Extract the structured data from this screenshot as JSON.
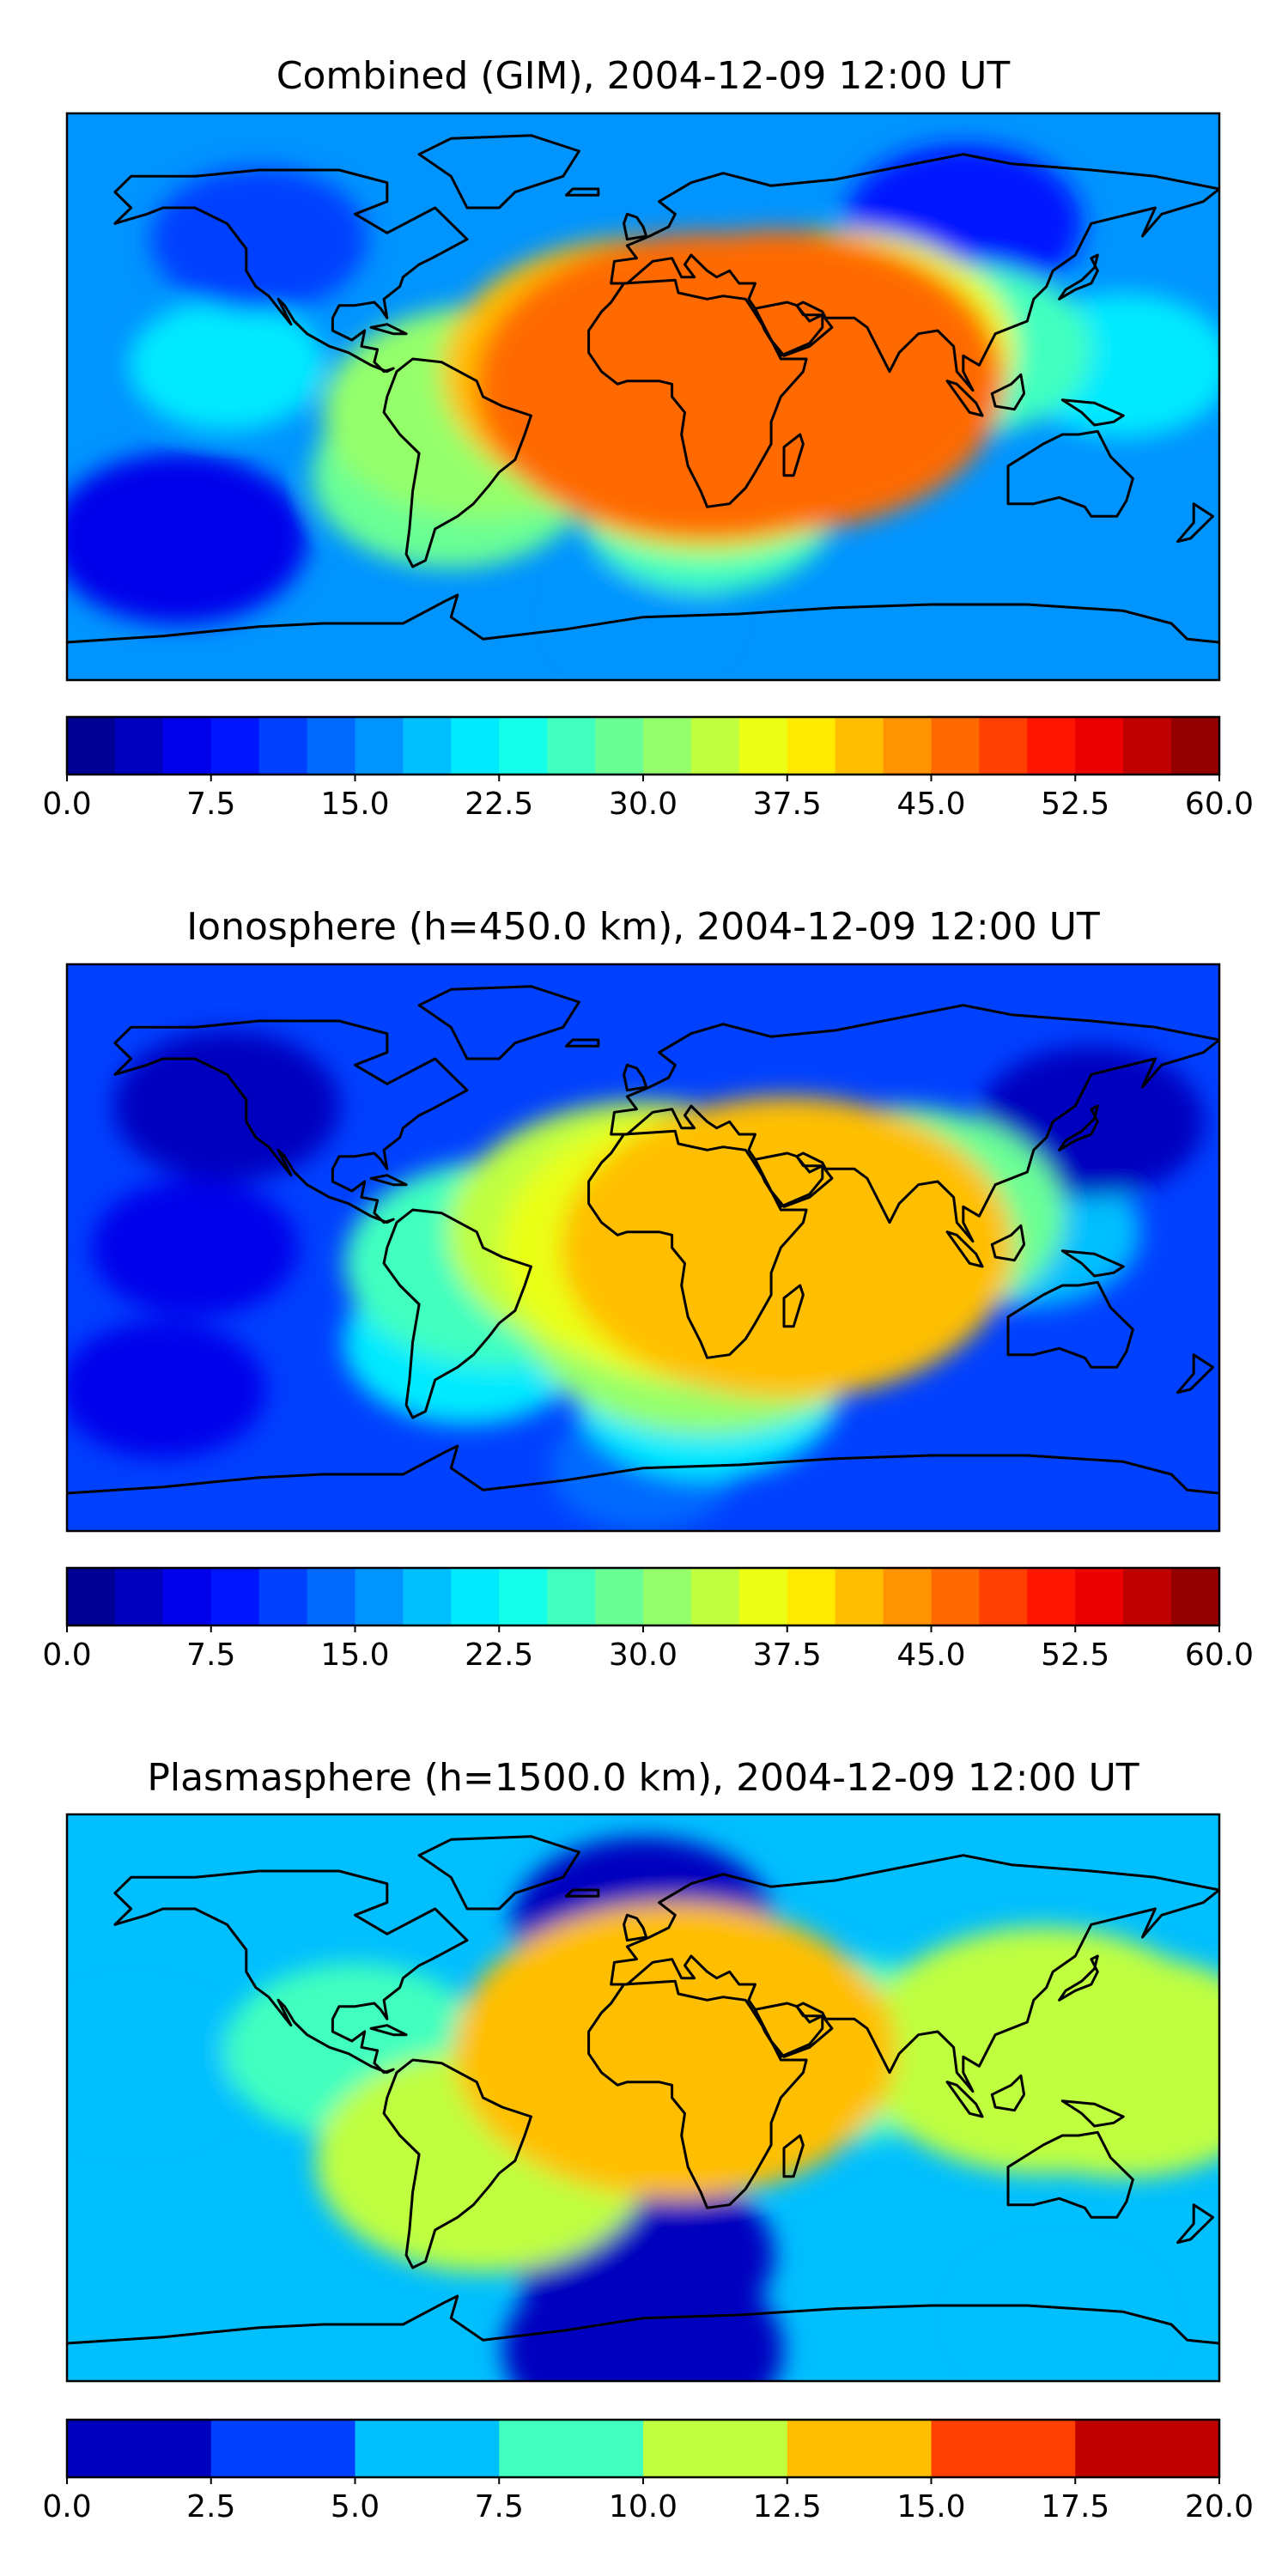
{
  "chart_data": [
    {
      "type": "heatmap",
      "title": "Combined (GIM), 2004-12-09 12:00 UT",
      "colorbar": {
        "min": 0.0,
        "max": 60.0,
        "step": 2.5,
        "ticks": [
          "0.0",
          "7.5",
          "15.0",
          "22.5",
          "30.0",
          "37.5",
          "45.0",
          "52.5",
          "60.0"
        ]
      },
      "features": [
        {
          "lon": 20,
          "lat": 3,
          "value": 46
        },
        {
          "lon": 42,
          "lat": 5,
          "value": 45
        },
        {
          "lon": 0,
          "lat": 8,
          "value": 40
        },
        {
          "lon": 60,
          "lat": 15,
          "value": 36
        },
        {
          "lon": 100,
          "lat": 15,
          "value": 26
        },
        {
          "lon": 150,
          "lat": 10,
          "value": 22
        },
        {
          "lon": -50,
          "lat": -5,
          "value": 32
        },
        {
          "lon": -60,
          "lat": -25,
          "value": 28
        },
        {
          "lon": 20,
          "lat": -15,
          "value": 34
        },
        {
          "lon": 20,
          "lat": -35,
          "value": 26
        },
        {
          "lon": -130,
          "lat": 10,
          "value": 20
        },
        {
          "lon": -120,
          "lat": 50,
          "value": 10
        },
        {
          "lon": -145,
          "lat": -45,
          "value": 6
        },
        {
          "lon": 100,
          "lat": 55,
          "value": 8
        },
        {
          "lon": 0,
          "lat": -70,
          "value": 15
        }
      ],
      "base_value": 16
    },
    {
      "type": "heatmap",
      "title": "Ionosphere  (h=450.0 km), 2004-12-09 12:00 UT",
      "colorbar": {
        "min": 0.0,
        "max": 60.0,
        "step": 2.5,
        "ticks": [
          "0.0",
          "7.5",
          "15.0",
          "22.5",
          "30.0",
          "37.5",
          "45.0",
          "52.5",
          "60.0"
        ]
      },
      "features": [
        {
          "lon": 45,
          "lat": 0,
          "value": 40
        },
        {
          "lon": 20,
          "lat": 0,
          "value": 36
        },
        {
          "lon": 0,
          "lat": 5,
          "value": 34
        },
        {
          "lon": 20,
          "lat": -20,
          "value": 32
        },
        {
          "lon": -45,
          "lat": -5,
          "value": 26
        },
        {
          "lon": -55,
          "lat": -30,
          "value": 20
        },
        {
          "lon": 80,
          "lat": 10,
          "value": 28
        },
        {
          "lon": 120,
          "lat": 5,
          "value": 18
        },
        {
          "lon": 20,
          "lat": -45,
          "value": 22
        },
        {
          "lon": -140,
          "lat": 0,
          "value": 6
        },
        {
          "lon": -130,
          "lat": 45,
          "value": 4
        },
        {
          "lon": 140,
          "lat": 40,
          "value": 4
        },
        {
          "lon": -150,
          "lat": -45,
          "value": 6
        },
        {
          "lon": 0,
          "lat": -70,
          "value": 14
        }
      ],
      "base_value": 11
    },
    {
      "type": "heatmap",
      "title": "Plasmasphere (h=1500.0 km), 2004-12-09 12:00 UT",
      "colorbar": {
        "min": 0.0,
        "max": 20.0,
        "step": 2.5,
        "ticks": [
          "0.0",
          "2.5",
          "5.0",
          "7.5",
          "10.0",
          "12.5",
          "15.0",
          "17.5",
          "20.0"
        ]
      },
      "features": [
        {
          "lon": 10,
          "lat": 15,
          "value": 13
        },
        {
          "lon": 5,
          "lat": 15,
          "value": 11
        },
        {
          "lon": 125,
          "lat": 15,
          "value": 11
        },
        {
          "lon": 150,
          "lat": 10,
          "value": 10
        },
        {
          "lon": -160,
          "lat": 10,
          "value": 6.5
        },
        {
          "lon": -50,
          "lat": -20,
          "value": 10
        },
        {
          "lon": -90,
          "lat": 15,
          "value": 8
        },
        {
          "lon": 60,
          "lat": 15,
          "value": 8.5
        },
        {
          "lon": 0,
          "lat": 55,
          "value": 2
        },
        {
          "lon": 0,
          "lat": -50,
          "value": 2
        },
        {
          "lon": 130,
          "lat": -70,
          "value": 6
        },
        {
          "lon": 0,
          "lat": -80,
          "value": 1.5
        }
      ],
      "base_value": 5
    }
  ],
  "colors": {
    "jet_stops": [
      "#00007f",
      "#0000ff",
      "#007fff",
      "#00ffff",
      "#7fff7f",
      "#ffff00",
      "#ff7f00",
      "#ff0000",
      "#7f0000"
    ],
    "coastline": "#000000"
  }
}
